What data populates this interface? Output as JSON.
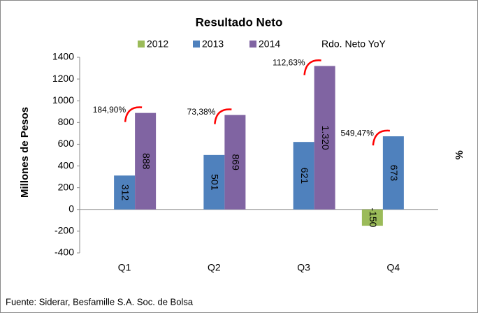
{
  "chart_data": {
    "type": "bar",
    "title": "Resultado Neto",
    "ylabel": "Millones de Pesos",
    "y2label": "%",
    "categories": [
      "Q1",
      "Q2",
      "Q3",
      "Q4"
    ],
    "series": [
      {
        "name": "2012",
        "color": "#9bbb59",
        "values": [
          null,
          null,
          null,
          -150
        ],
        "value_labels": [
          null,
          null,
          null,
          "-150"
        ]
      },
      {
        "name": "2013",
        "color": "#4f81bd",
        "values": [
          312,
          501,
          621,
          673
        ]
      },
      {
        "name": "2014",
        "color": "#8064a2",
        "values": [
          888,
          869,
          1320,
          null
        ],
        "value_labels": [
          "888",
          "869",
          "1.320",
          null
        ]
      },
      {
        "name": "Rdo. Neto YoY",
        "type": "line",
        "color": "#ff0000",
        "values": [
          184.9,
          73.38,
          112.63,
          549.47
        ],
        "value_labels": [
          "184,90%",
          "73,38%",
          "112,63%",
          "549,47%"
        ]
      }
    ],
    "ylim": [
      -400,
      1400
    ],
    "yticks": [
      -400,
      -200,
      0,
      200,
      400,
      600,
      800,
      1000,
      1200,
      1400
    ],
    "grid": false,
    "legend": "top",
    "source": "Fuente: Siderar, Besfamille S.A. Soc. de Bolsa"
  }
}
